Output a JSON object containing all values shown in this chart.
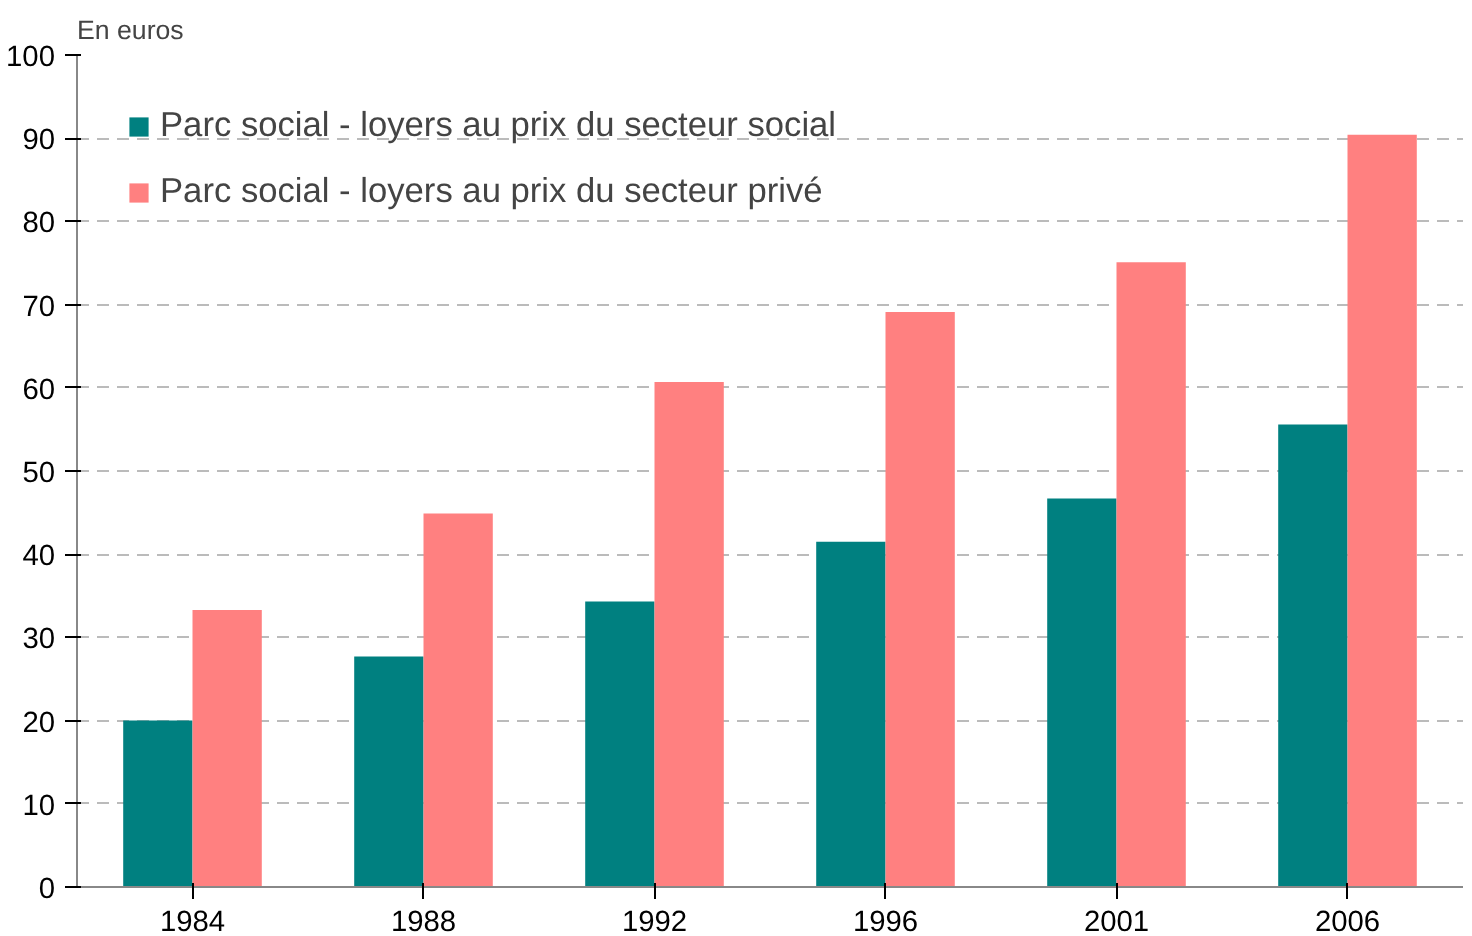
{
  "chart_data": {
    "type": "bar",
    "ylabel": "En euros",
    "categories": [
      "1984",
      "1988",
      "1992",
      "1996",
      "2001",
      "2006"
    ],
    "series": [
      {
        "name": "Parc social - loyers au prix du secteur social",
        "color": "#008080",
        "values": [
          20.0,
          27.7,
          34.3,
          41.5,
          46.7,
          55.6
        ]
      },
      {
        "name": "Parc social - loyers au prix du secteur privé",
        "color": "#ff8080",
        "values": [
          33.3,
          44.9,
          60.7,
          69.1,
          75.1,
          90.4
        ]
      }
    ],
    "ylim": [
      0,
      100
    ],
    "yticks": [
      0,
      10,
      20,
      30,
      40,
      50,
      60,
      70,
      80,
      90,
      100
    ],
    "grid": "y",
    "legend": "top left"
  }
}
